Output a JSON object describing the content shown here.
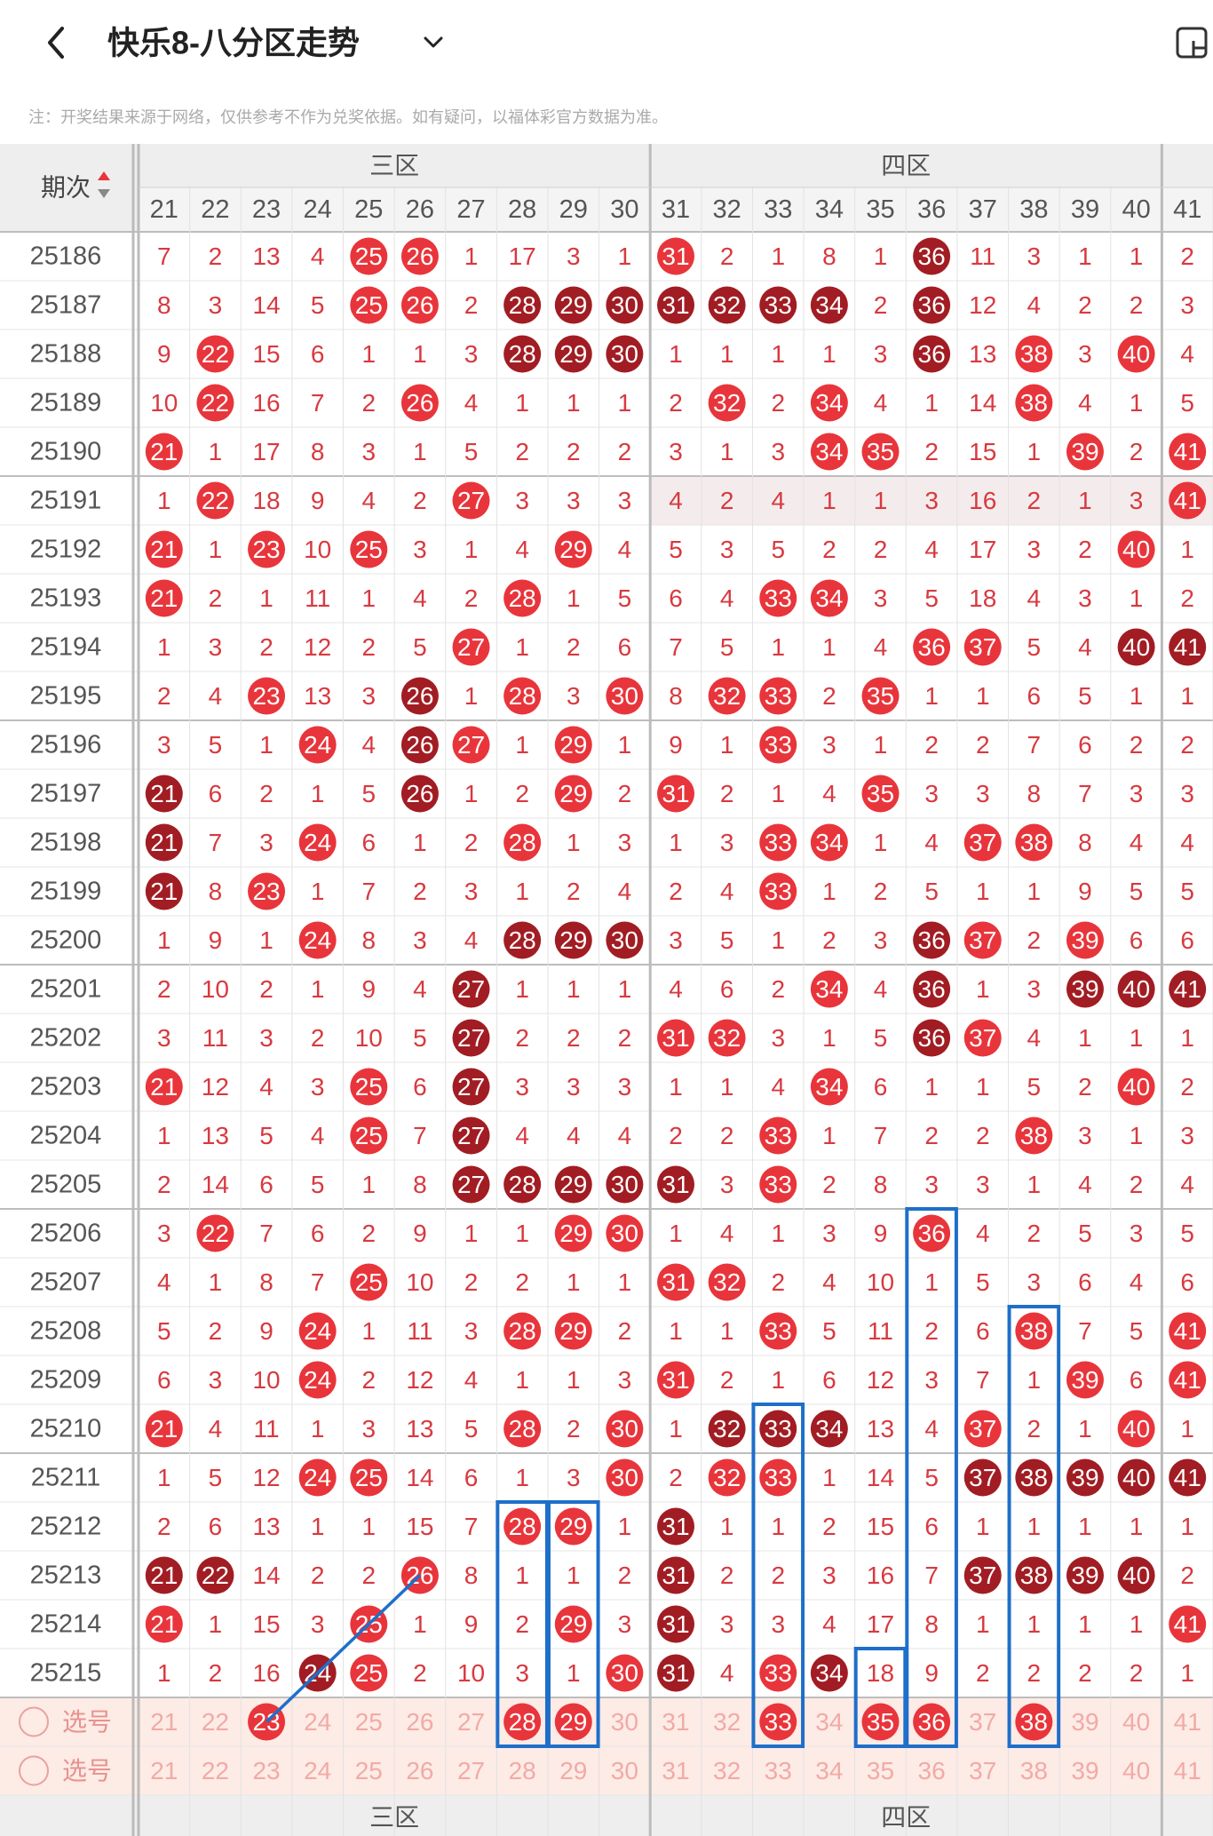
{
  "header": {
    "title": "快乐8-八分区走势",
    "note": "注：开奖结果来源于网络，仅供参考不作为兑奖依据。如有疑问，以福体彩官方数据为准。"
  },
  "table": {
    "issue_label": "期次",
    "zones": [
      "三区",
      "四区"
    ],
    "columns": [
      21,
      22,
      23,
      24,
      25,
      26,
      27,
      28,
      29,
      30,
      31,
      32,
      33,
      34,
      35,
      36,
      37,
      38,
      39,
      40,
      41
    ],
    "rows": [
      {
        "issue": "25186",
        "cells": [
          7,
          2,
          13,
          4,
          25,
          26,
          1,
          17,
          3,
          1,
          31,
          2,
          1,
          8,
          1,
          36,
          11,
          3,
          1,
          1,
          2
        ],
        "style": "nnnnrrnnnnrnnnndnnnnn"
      },
      {
        "issue": "25187",
        "cells": [
          8,
          3,
          14,
          5,
          25,
          26,
          2,
          28,
          29,
          30,
          31,
          32,
          33,
          34,
          2,
          36,
          12,
          4,
          2,
          2,
          3
        ],
        "style": "nnnnrrndddddddndnnnnn"
      },
      {
        "issue": "25188",
        "cells": [
          9,
          22,
          15,
          6,
          1,
          1,
          3,
          28,
          29,
          30,
          1,
          1,
          1,
          1,
          3,
          36,
          13,
          38,
          3,
          40,
          4
        ],
        "style": "nrnnnnndddnnnnndnrnrn"
      },
      {
        "issue": "25189",
        "cells": [
          10,
          22,
          16,
          7,
          2,
          26,
          4,
          1,
          1,
          1,
          2,
          32,
          2,
          34,
          4,
          1,
          14,
          38,
          4,
          1,
          5
        ],
        "style": "nrnnnrnnnnnrnrnnnrnnn"
      },
      {
        "issue": "25190",
        "cells": [
          21,
          1,
          17,
          8,
          3,
          1,
          5,
          2,
          2,
          2,
          3,
          1,
          3,
          34,
          35,
          2,
          15,
          1,
          39,
          2,
          41
        ],
        "style": "rnnnnnnnnnnnnrrnnnrnr"
      },
      {
        "issue": "25191",
        "cells": [
          1,
          22,
          18,
          9,
          4,
          2,
          27,
          3,
          3,
          3,
          4,
          2,
          4,
          1,
          1,
          3,
          16,
          2,
          1,
          3,
          41
        ],
        "style": "nrnnnnrnnnnnnnnnnnnnr"
      },
      {
        "issue": "25192",
        "cells": [
          21,
          1,
          23,
          10,
          25,
          3,
          1,
          4,
          29,
          4,
          5,
          3,
          5,
          2,
          2,
          4,
          17,
          3,
          2,
          40,
          1
        ],
        "style": "rnrnrnnnrnnnnnnnnnnrn"
      },
      {
        "issue": "25193",
        "cells": [
          21,
          2,
          1,
          11,
          1,
          4,
          2,
          28,
          1,
          5,
          6,
          4,
          33,
          34,
          3,
          5,
          18,
          4,
          3,
          1,
          2
        ],
        "style": "rnnnnnnrnnnnrrnnnnnnn"
      },
      {
        "issue": "25194",
        "cells": [
          1,
          3,
          2,
          12,
          2,
          5,
          27,
          1,
          2,
          6,
          7,
          5,
          1,
          1,
          4,
          36,
          37,
          5,
          4,
          40,
          41
        ],
        "style": "nnnnnnrnnnnnnnnrrnndd"
      },
      {
        "issue": "25195",
        "cells": [
          2,
          4,
          23,
          13,
          3,
          26,
          1,
          28,
          3,
          30,
          8,
          32,
          33,
          2,
          35,
          1,
          1,
          6,
          5,
          1,
          1
        ],
        "style": "nnrnndnrnrnrrnrnnnnnn"
      },
      {
        "issue": "25196",
        "cells": [
          3,
          5,
          1,
          24,
          4,
          26,
          27,
          1,
          29,
          1,
          9,
          1,
          33,
          3,
          1,
          2,
          2,
          7,
          6,
          2,
          2
        ],
        "style": "nnnrndrnrnnnrnnnnnnnn"
      },
      {
        "issue": "25197",
        "cells": [
          21,
          6,
          2,
          1,
          5,
          26,
          1,
          2,
          29,
          2,
          31,
          2,
          1,
          4,
          35,
          3,
          3,
          8,
          7,
          3,
          3
        ],
        "style": "dnnnndnnrnrnnnrnnnnnn"
      },
      {
        "issue": "25198",
        "cells": [
          21,
          7,
          3,
          24,
          6,
          1,
          2,
          28,
          1,
          3,
          1,
          3,
          33,
          34,
          1,
          4,
          37,
          38,
          8,
          4,
          4
        ],
        "style": "dnnrnnnrnnnnrrnnrrnnn"
      },
      {
        "issue": "25199",
        "cells": [
          21,
          8,
          23,
          1,
          7,
          2,
          3,
          1,
          2,
          4,
          2,
          4,
          33,
          1,
          2,
          5,
          1,
          1,
          9,
          5,
          5
        ],
        "style": "dnrnnnnnnnnnrnnnnnnnn"
      },
      {
        "issue": "25200",
        "cells": [
          1,
          9,
          1,
          24,
          8,
          3,
          4,
          28,
          29,
          30,
          3,
          5,
          1,
          2,
          3,
          36,
          37,
          2,
          39,
          6,
          6
        ],
        "style": "nnnrnnndddnnnnndrnrnn"
      },
      {
        "issue": "25201",
        "cells": [
          2,
          10,
          2,
          1,
          9,
          4,
          27,
          1,
          1,
          1,
          4,
          6,
          2,
          34,
          4,
          36,
          1,
          3,
          39,
          40,
          41
        ],
        "style": "nnnnnndnnnnnnrndnnddd"
      },
      {
        "issue": "25202",
        "cells": [
          3,
          11,
          3,
          2,
          10,
          5,
          27,
          2,
          2,
          2,
          31,
          32,
          3,
          1,
          5,
          36,
          37,
          4,
          1,
          1,
          1
        ],
        "style": "nnnnnndnnnrrnnndrnnnn"
      },
      {
        "issue": "25203",
        "cells": [
          21,
          12,
          4,
          3,
          25,
          6,
          27,
          3,
          3,
          3,
          1,
          1,
          4,
          34,
          6,
          1,
          1,
          5,
          2,
          40,
          2
        ],
        "style": "rnnnrndnnnnnnrnnnnnrn"
      },
      {
        "issue": "25204",
        "cells": [
          1,
          13,
          5,
          4,
          25,
          7,
          27,
          4,
          4,
          4,
          2,
          2,
          33,
          1,
          7,
          2,
          2,
          38,
          3,
          1,
          3
        ],
        "style": "nnnnrndnnnnnrnnnnrnnn"
      },
      {
        "issue": "25205",
        "cells": [
          2,
          14,
          6,
          5,
          1,
          8,
          27,
          28,
          29,
          30,
          31,
          3,
          33,
          2,
          8,
          3,
          3,
          1,
          4,
          2,
          4
        ],
        "style": "nnnnnndddddnrnnnnnnnn"
      },
      {
        "issue": "25206",
        "cells": [
          3,
          22,
          7,
          6,
          2,
          9,
          1,
          1,
          29,
          30,
          1,
          4,
          1,
          3,
          9,
          36,
          4,
          2,
          5,
          3,
          5
        ],
        "style": "nrnnnnnnrrnnnnnrnnnnn"
      },
      {
        "issue": "25207",
        "cells": [
          4,
          1,
          8,
          7,
          25,
          10,
          2,
          2,
          1,
          1,
          31,
          32,
          2,
          4,
          10,
          1,
          5,
          3,
          6,
          4,
          6
        ],
        "style": "nnnnrnnnnnrrnnnnnnnnn"
      },
      {
        "issue": "25208",
        "cells": [
          5,
          2,
          9,
          24,
          1,
          11,
          3,
          28,
          29,
          2,
          1,
          1,
          33,
          5,
          11,
          2,
          6,
          38,
          7,
          5,
          41
        ],
        "style": "nnnrnnnrrnnnrnnnnrnnr"
      },
      {
        "issue": "25209",
        "cells": [
          6,
          3,
          10,
          24,
          2,
          12,
          4,
          1,
          1,
          3,
          31,
          2,
          1,
          6,
          12,
          3,
          7,
          1,
          39,
          6,
          41
        ],
        "style": "nnnrnnnnnnrnnnnnnnrnr"
      },
      {
        "issue": "25210",
        "cells": [
          21,
          4,
          11,
          1,
          3,
          13,
          5,
          28,
          2,
          30,
          1,
          32,
          33,
          34,
          13,
          4,
          37,
          2,
          1,
          40,
          1
        ],
        "style": "rnnnnnnrnrndddnnrnnrn"
      },
      {
        "issue": "25211",
        "cells": [
          1,
          5,
          12,
          24,
          25,
          14,
          6,
          1,
          3,
          30,
          2,
          32,
          33,
          1,
          14,
          5,
          37,
          38,
          39,
          40,
          41
        ],
        "style": "nnnrrnnnnrnrrnnnddddd"
      },
      {
        "issue": "25212",
        "cells": [
          2,
          6,
          13,
          1,
          1,
          15,
          7,
          28,
          29,
          1,
          31,
          1,
          1,
          2,
          15,
          6,
          1,
          1,
          1,
          1,
          1
        ],
        "style": "nnnnnnnrrndnnnnnnnnnn"
      },
      {
        "issue": "25213",
        "cells": [
          21,
          22,
          14,
          2,
          2,
          26,
          8,
          1,
          1,
          2,
          31,
          2,
          2,
          3,
          16,
          7,
          37,
          38,
          39,
          40,
          2
        ],
        "style": "ddnnnrnnnndnnnnnddddn"
      },
      {
        "issue": "25214",
        "cells": [
          21,
          1,
          15,
          3,
          25,
          1,
          9,
          2,
          29,
          3,
          31,
          3,
          3,
          4,
          17,
          8,
          1,
          1,
          1,
          1,
          41
        ],
        "style": "rnnnrnnnrndnnnnnnnnnr"
      },
      {
        "issue": "25215",
        "cells": [
          1,
          2,
          16,
          24,
          25,
          2,
          10,
          3,
          1,
          30,
          31,
          4,
          33,
          34,
          18,
          9,
          2,
          2,
          2,
          2,
          1
        ],
        "style": "nnndrnnnnrdnrdnnnnnnn"
      }
    ],
    "select_rows": [
      {
        "label": "选号",
        "picked": [
          23,
          28,
          29,
          33,
          35,
          36,
          38
        ]
      },
      {
        "label": "选号",
        "picked": []
      }
    ]
  }
}
